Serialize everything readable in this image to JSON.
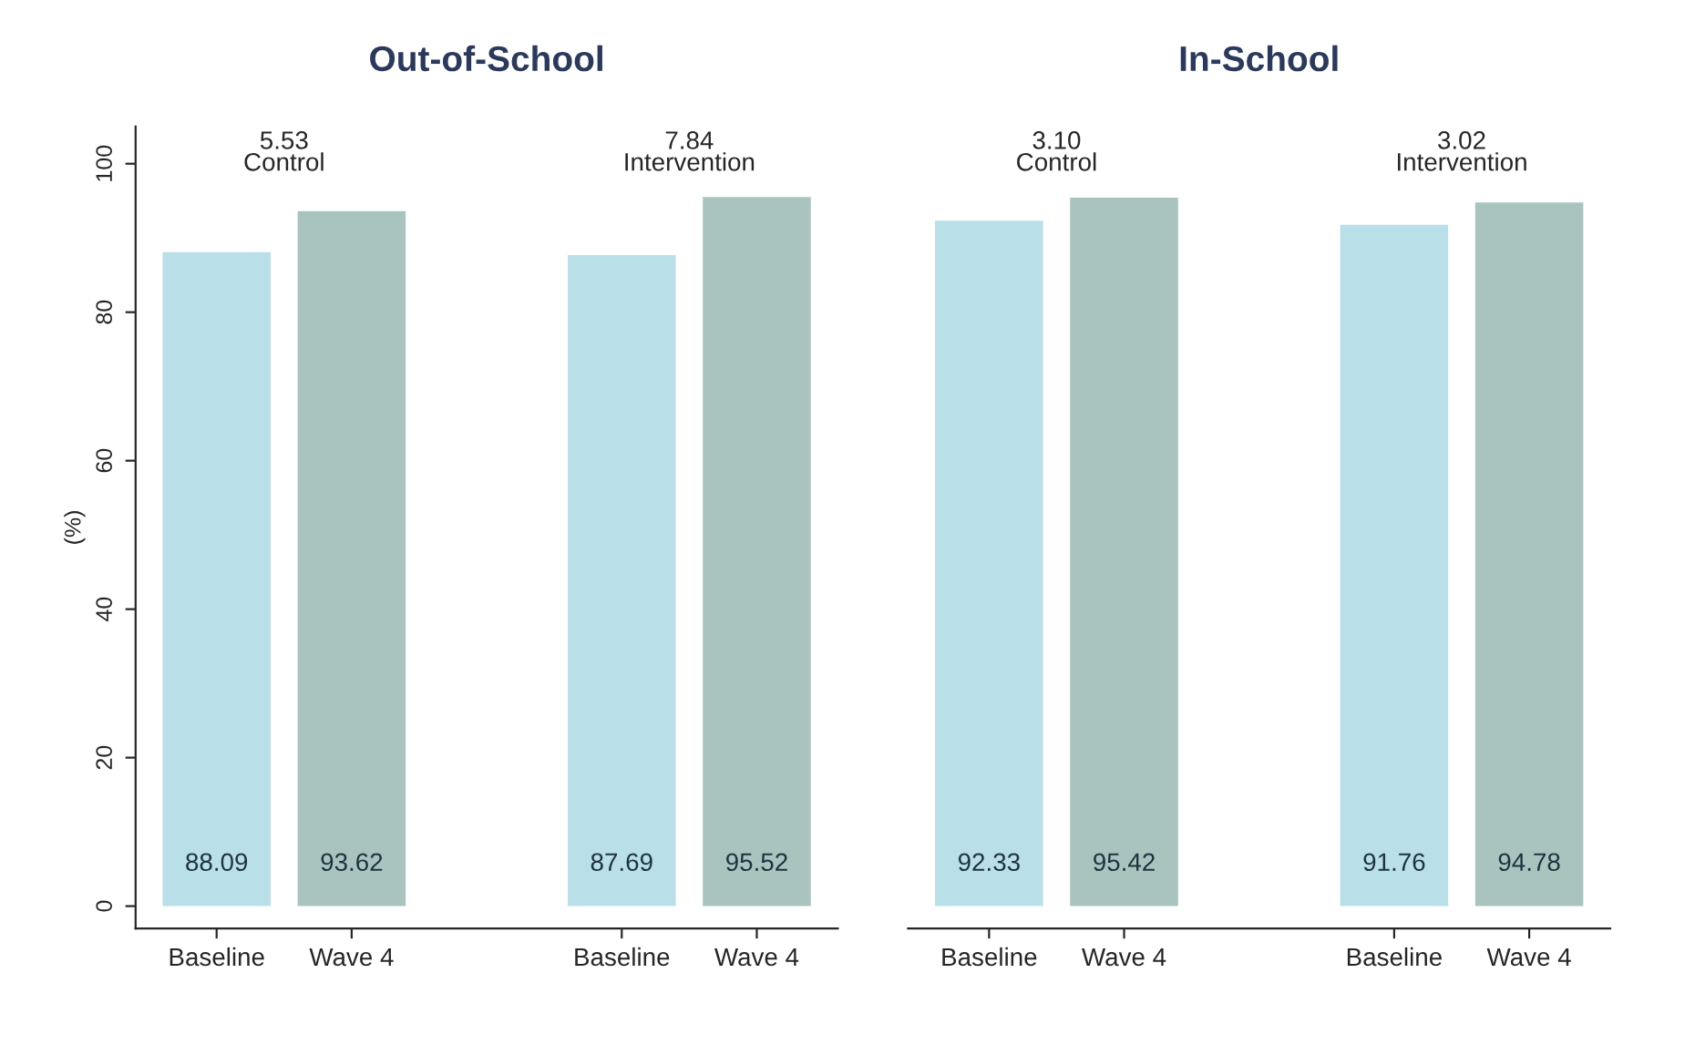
{
  "chart_data": [
    {
      "type": "bar",
      "title": "Out-of-School",
      "ylabel": "(%)",
      "categories": [
        "Baseline",
        "Wave 4",
        null,
        "Baseline",
        "Wave 4"
      ],
      "values": [
        88.09,
        93.62,
        null,
        87.69,
        95.52
      ],
      "colors": [
        "#b9dfe8",
        "#a9c4be",
        null,
        "#b9dfe8",
        "#a9c4be"
      ],
      "data_labels": true,
      "ylim": [
        -3,
        105
      ],
      "yticks": [
        0,
        20,
        40,
        60,
        80,
        100
      ],
      "grid": false,
      "legend": false,
      "annotations": [
        "5.53\nControl",
        "7.84\nIntervention"
      ]
    },
    {
      "type": "bar",
      "title": "In-School",
      "categories": [
        "Baseline",
        "Wave 4",
        null,
        "Baseline",
        "Wave 4"
      ],
      "values": [
        92.33,
        95.42,
        null,
        91.76,
        94.78
      ],
      "colors": [
        "#b9dfe8",
        "#a9c4be",
        null,
        "#b9dfe8",
        "#a9c4be"
      ],
      "data_labels": true,
      "tick_labels": "x",
      "grid": false,
      "legend": false,
      "annotations": [
        "3.10\nControl",
        "3.02\nIntervention"
      ]
    }
  ]
}
